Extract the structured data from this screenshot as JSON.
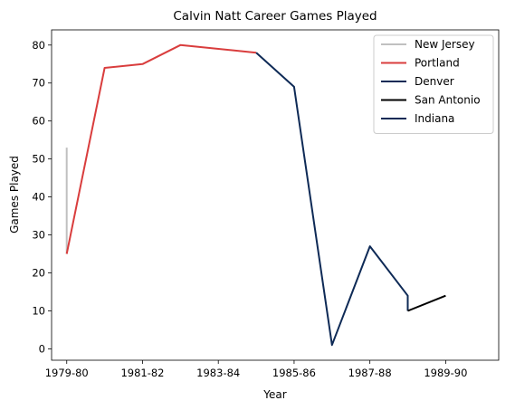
{
  "chart_data": {
    "type": "line",
    "title": "Calvin Natt Career Games Played",
    "xlabel": "Year",
    "ylabel": "Games Played",
    "x_ticks": [
      "1979-80",
      "1981-82",
      "1983-84",
      "1985-86",
      "1987-88",
      "1989-90"
    ],
    "xlim": [
      1978.6,
      1990.4
    ],
    "ylim": [
      -3,
      84
    ],
    "y_ticks": [
      0,
      10,
      20,
      30,
      40,
      50,
      60,
      70,
      80
    ],
    "grid": false,
    "legend_position": "top-right",
    "series": [
      {
        "name": "New Jersey",
        "color": "#c0c0c0",
        "points": [
          [
            1979,
            53
          ],
          [
            1979,
            25
          ]
        ]
      },
      {
        "name": "Portland",
        "color": "#d93d3d",
        "points": [
          [
            1979,
            25
          ],
          [
            1980,
            74
          ],
          [
            1981,
            75
          ],
          [
            1982,
            80
          ],
          [
            1984,
            78
          ]
        ]
      },
      {
        "name": "Denver",
        "color": "#0e2a56",
        "points": [
          [
            1984,
            78
          ],
          [
            1985,
            69
          ],
          [
            1986,
            1
          ],
          [
            1987,
            27
          ],
          [
            1988,
            14
          ],
          [
            1988,
            10
          ]
        ]
      },
      {
        "name": "San Antonio",
        "color": "#000000",
        "points": [
          [
            1988,
            10
          ],
          [
            1989,
            14
          ]
        ]
      },
      {
        "name": "Indiana",
        "color": "#0e2a56",
        "points": []
      }
    ]
  }
}
